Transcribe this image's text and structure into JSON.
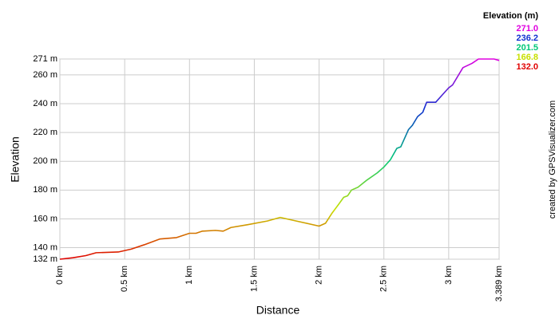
{
  "chart_data": {
    "type": "line",
    "xlabel": "Distance",
    "ylabel": "Elevation",
    "x": [
      0,
      0.1,
      0.2,
      0.28,
      0.45,
      0.55,
      0.65,
      0.77,
      0.9,
      1.0,
      1.05,
      1.1,
      1.2,
      1.26,
      1.32,
      1.45,
      1.6,
      1.7,
      1.8,
      2.0,
      2.05,
      2.1,
      2.15,
      2.19,
      2.22,
      2.25,
      2.3,
      2.37,
      2.45,
      2.5,
      2.55,
      2.6,
      2.63,
      2.67,
      2.69,
      2.72,
      2.76,
      2.8,
      2.83,
      2.9,
      2.95,
      3.0,
      3.03,
      3.11,
      3.18,
      3.23,
      3.35,
      3.389
    ],
    "values": [
      132,
      133,
      134.5,
      136.5,
      137,
      139,
      142,
      146,
      147,
      150,
      150,
      151.5,
      152,
      151.5,
      154,
      156,
      158.5,
      161,
      159,
      155,
      157,
      164,
      170,
      175,
      176,
      180,
      182,
      187,
      192,
      196,
      201,
      209,
      210,
      218,
      222,
      225,
      231,
      234,
      241,
      241,
      246,
      251,
      253,
      265,
      268,
      271,
      271,
      270
    ],
    "xlim": [
      0,
      3.389
    ],
    "ylim": [
      132,
      271
    ],
    "xticks": [
      {
        "value": 0,
        "label": "0 km"
      },
      {
        "value": 0.5,
        "label": "0.5 km"
      },
      {
        "value": 1,
        "label": "1 km"
      },
      {
        "value": 1.5,
        "label": "1.5 km"
      },
      {
        "value": 2,
        "label": "2 km"
      },
      {
        "value": 2.5,
        "label": "2.5 km"
      },
      {
        "value": 3,
        "label": "3 km"
      },
      {
        "value": 3.389,
        "label": "3.389 km"
      }
    ],
    "yticks": [
      {
        "value": 132,
        "label": "132 m"
      },
      {
        "value": 140,
        "label": "140 m"
      },
      {
        "value": 160,
        "label": "160 m"
      },
      {
        "value": 180,
        "label": "180 m"
      },
      {
        "value": 200,
        "label": "200 m"
      },
      {
        "value": 220,
        "label": "220 m"
      },
      {
        "value": 240,
        "label": "240 m"
      },
      {
        "value": 260,
        "label": "260 m"
      },
      {
        "value": 271,
        "label": "271 m"
      }
    ],
    "grid": true,
    "color_legend": {
      "title": "Elevation (m)",
      "entries": [
        {
          "value": 271,
          "label": "271.0",
          "color": "#e000e0"
        },
        {
          "value": 236.2,
          "label": "236.2",
          "color": "#1030d0"
        },
        {
          "value": 201.5,
          "label": "201.5",
          "color": "#00c878"
        },
        {
          "value": 166.8,
          "label": "166.8",
          "color": "#c8e000"
        },
        {
          "value": 132,
          "label": "132.0",
          "color": "#e00000"
        }
      ]
    },
    "credit": "created by GPSVisualizer.com"
  }
}
